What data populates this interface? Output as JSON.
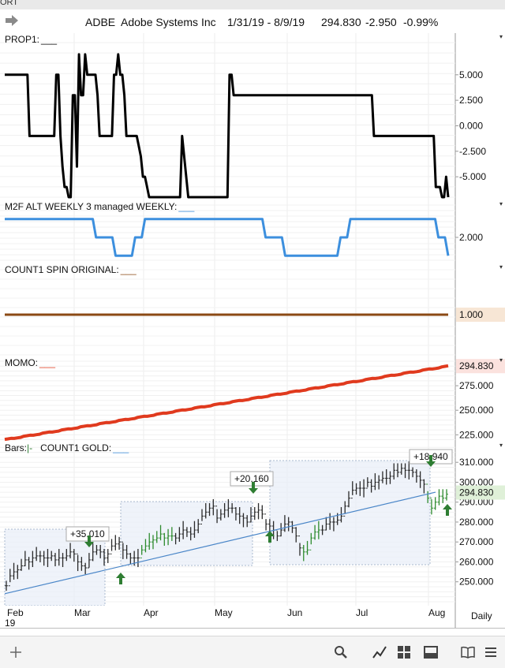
{
  "top_strip": {
    "text": "ORT"
  },
  "header": {
    "symbol": "ADBE",
    "company": "Adobe Systems Inc",
    "date_range": "1/31/19 - 8/9/19",
    "last": "294.830",
    "change": "-2.950",
    "change_pct": "-0.99%",
    "arrow_icon": "share-arrow-icon"
  },
  "x_axis": {
    "labels": [
      "Feb",
      "Mar",
      "Apr",
      "May",
      "Jun",
      "Jul",
      "Aug"
    ],
    "year": "19",
    "period": "Daily"
  },
  "chart_data": [
    {
      "type": "line",
      "title": "PROP1:",
      "series": [
        {
          "color": "#000000",
          "values": [
            5,
            5,
            5,
            5,
            5,
            5,
            5,
            5,
            5,
            5,
            5,
            5,
            -1,
            -1,
            -1,
            -1,
            -1,
            -1,
            -1,
            -1,
            -1,
            -1,
            -1,
            -1,
            -1,
            5,
            5,
            -1,
            -4,
            -6,
            -6,
            -7,
            -7,
            3,
            3,
            -4,
            7,
            3,
            3,
            7,
            5,
            5,
            5,
            5,
            5,
            3,
            -1,
            -1,
            -1,
            -1,
            -1,
            -1,
            -1,
            5,
            5,
            7,
            5,
            5,
            3,
            -1,
            -1,
            -1,
            -1,
            -1,
            -1,
            -2,
            -3,
            -5,
            -5,
            -6,
            -7,
            -7,
            -7,
            -7,
            -7,
            -7,
            -7,
            -7,
            -7,
            -7,
            -7,
            -7,
            -7,
            -7,
            -7,
            -7,
            -1,
            -3,
            -5,
            -7,
            -7,
            -7,
            -7,
            -7,
            -7,
            -7,
            -7,
            -7,
            -7,
            -7,
            -7,
            -7,
            -7,
            -7,
            -7,
            -7,
            -7,
            -7,
            -7,
            5,
            5,
            3,
            3,
            3,
            3,
            3,
            3,
            3,
            3,
            3,
            3,
            3,
            3,
            3,
            3,
            3,
            3,
            3,
            3,
            3,
            3,
            3,
            3,
            3,
            3,
            3,
            3,
            3,
            3,
            3,
            3,
            3,
            3,
            3,
            3,
            3,
            3,
            3,
            3,
            3,
            3,
            3,
            3,
            3,
            3,
            3,
            3,
            3,
            3,
            3,
            3,
            3,
            3,
            3,
            3,
            3,
            3,
            3,
            3,
            3,
            3,
            3,
            3,
            3,
            3,
            3,
            3,
            3,
            3,
            -1,
            -1,
            -1,
            -1,
            -1,
            -1,
            -1,
            -1,
            -1,
            -1,
            -1,
            -1,
            -1,
            -1,
            -1,
            -1,
            -1,
            -1,
            -1,
            -1,
            -1,
            -1,
            -1,
            -1,
            -1,
            -1,
            -1,
            -1,
            -1,
            -1,
            -6,
            -6,
            -6,
            -7,
            -7,
            -5,
            -7
          ]
        }
      ],
      "y_ticks": [
        "5.000",
        "2.500",
        "0.000",
        "-2.500",
        "-5.000"
      ],
      "ylim": [
        -7,
        8
      ]
    },
    {
      "type": "line",
      "title": "M2F ALT WEEKLY 3 managed WEEKLY:",
      "series": [
        {
          "color": "#3c8fde",
          "values": [
            3,
            3,
            3,
            3,
            3,
            3,
            3,
            3,
            3,
            3,
            3,
            3,
            3,
            3,
            3,
            3,
            3,
            3,
            3,
            3,
            3,
            3,
            3,
            3,
            3,
            3,
            3,
            3,
            2,
            2,
            2,
            2,
            2,
            2,
            1,
            1,
            1,
            1,
            1,
            1,
            2,
            2,
            2,
            3,
            3,
            3,
            3,
            3,
            3,
            3,
            3,
            3,
            3,
            3,
            3,
            3,
            3,
            3,
            3,
            3,
            3,
            3,
            3,
            3,
            3,
            3,
            3,
            3,
            3,
            3,
            3,
            3,
            3,
            3,
            3,
            3,
            3,
            3,
            3,
            3,
            2,
            2,
            2,
            2,
            2,
            2,
            1,
            1,
            1,
            1,
            1,
            1,
            1,
            1,
            1,
            1,
            1,
            1,
            1,
            1,
            1,
            1,
            1,
            2,
            2,
            2,
            3,
            3,
            3,
            3,
            3,
            3,
            3,
            3,
            3,
            3,
            3,
            3,
            3,
            3,
            3,
            3,
            3,
            3,
            3,
            3,
            3,
            3,
            3,
            3,
            3,
            3,
            3,
            2,
            2,
            2,
            1
          ]
        }
      ],
      "y_ticks": [
        "2.000"
      ],
      "ylim": [
        0.5,
        3.5
      ]
    },
    {
      "type": "line",
      "title": "COUNT1 SPIN ORIGINAL:",
      "series": [
        {
          "color": "#8b4a14",
          "values": [
            1.0,
            1.0
          ]
        }
      ],
      "last_value": "1.000",
      "ylim": [
        0,
        2
      ]
    },
    {
      "type": "line",
      "title": "MOMO:",
      "series": [
        {
          "color": "#e03a1e",
          "values": [
            220,
            295
          ]
        }
      ],
      "y_ticks": [
        "275.000",
        "250.000",
        "225.000"
      ],
      "last_value": "294.830",
      "ylim": [
        218,
        300
      ]
    },
    {
      "type": "bar",
      "title": "Bars:",
      "series_name": "COUNT1 GOLD:",
      "y_ticks": [
        "310.000",
        "300.000",
        "290.000",
        "280.000",
        "270.000",
        "260.000",
        "250.000"
      ],
      "last_value": "294.830",
      "ylim": [
        238,
        318
      ],
      "annotations": [
        "+35.010",
        "+20.160",
        "+18.940"
      ],
      "closes": [
        248,
        253,
        255,
        256,
        258,
        261,
        260,
        262,
        263,
        263,
        262,
        262,
        263,
        261,
        262,
        262,
        263,
        265,
        264,
        260,
        258,
        257,
        261,
        265,
        266,
        265,
        262,
        264,
        268,
        269,
        270,
        266,
        264,
        262,
        262,
        262,
        266,
        268,
        270,
        271,
        272,
        274,
        272,
        273,
        273,
        272,
        274,
        276,
        275,
        274,
        276,
        279,
        283,
        285,
        287,
        288,
        282,
        284,
        286,
        287,
        287,
        284,
        283,
        282,
        280,
        283,
        285,
        286,
        284,
        279,
        278,
        276,
        273,
        276,
        279,
        280,
        277,
        273,
        267,
        265,
        266,
        272,
        275,
        276,
        276,
        279,
        280,
        280,
        281,
        283,
        288,
        292,
        296,
        297,
        297,
        297,
        300,
        298,
        300,
        301,
        302,
        302,
        303,
        306,
        305,
        307,
        306,
        306,
        305,
        303,
        301,
        299,
        292,
        287,
        290,
        293,
        292,
        294
      ],
      "reference_line": [
        244,
        295
      ]
    }
  ]
}
